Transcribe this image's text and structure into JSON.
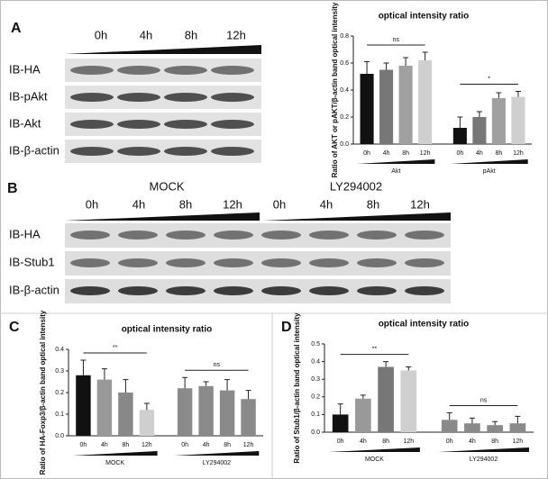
{
  "panel_labels": [
    "A",
    "B",
    "C",
    "D"
  ],
  "blot_a": {
    "times": [
      "0h",
      "4h",
      "8h",
      "12h"
    ],
    "rows": [
      "IB-HA",
      "IB-pAkt",
      "IB-Akt",
      "IB-β-actin"
    ]
  },
  "blot_b": {
    "groups": [
      "MOCK",
      "LY294002"
    ],
    "times": [
      "0h",
      "4h",
      "8h",
      "12h",
      "0h",
      "4h",
      "8h",
      "12h"
    ],
    "rows": [
      "IB-HA",
      "IB-Stub1",
      "IB-β-actin"
    ]
  },
  "chart_data": [
    {
      "type": "bar",
      "title": "optical intensity ratio",
      "y_label": "Ratio of AKT or pAKT/β-actin band optical intensity",
      "categories": [
        "0h",
        "4h",
        "8h",
        "12h",
        "0h",
        "4h",
        "8h",
        "12h"
      ],
      "groups": [
        "Akt",
        "pAkt"
      ],
      "annotations": [
        "ns",
        "*"
      ],
      "values": [
        0.52,
        0.55,
        0.58,
        0.62,
        0.12,
        0.2,
        0.34,
        0.35
      ],
      "errors": [
        0.09,
        0.05,
        0.06,
        0.06,
        0.08,
        0.04,
        0.04,
        0.04
      ],
      "colors": [
        "#111111",
        "#777777",
        "#a0a0a0",
        "#cfcfcf",
        "#111111",
        "#777777",
        "#a0a0a0",
        "#cfcfcf"
      ],
      "ylim": [
        0,
        0.8
      ],
      "yticks": [
        {
          "value": 0,
          "label": "0.0"
        },
        0.2,
        0.4,
        0.6,
        0.8
      ]
    },
    {
      "type": "bar",
      "title": "optical intensity ratio",
      "y_label": "Ratio of HA-Foxp3/β-actin band optical intensity",
      "categories": [
        "0h",
        "4h",
        "8h",
        "12h",
        "0h",
        "4h",
        "8h",
        "12h"
      ],
      "groups": [
        "MOCK",
        "LY294002"
      ],
      "annotations": [
        "**",
        "ns"
      ],
      "values": [
        0.28,
        0.26,
        0.2,
        0.12,
        0.22,
        0.23,
        0.21,
        0.17
      ],
      "errors": [
        0.07,
        0.05,
        0.06,
        0.03,
        0.05,
        0.02,
        0.05,
        0.04
      ],
      "colors": [
        "#111111",
        "#999999",
        "#888888",
        "#cfcfcf",
        "#8a8a8a",
        "#8a8a8a",
        "#8a8a8a",
        "#8a8a8a"
      ],
      "ylim": [
        0,
        0.4
      ],
      "yticks": [
        {
          "value": 0,
          "label": "0.0"
        },
        0.1,
        0.2,
        0.3,
        0.4
      ]
    },
    {
      "type": "bar",
      "title": "optical intensity ratio",
      "y_label": "Ratio of Stub1/β-actin band optical intensity",
      "categories": [
        "0h",
        "4h",
        "8h",
        "12h",
        "0h",
        "4h",
        "8h",
        "12h"
      ],
      "groups": [
        "MOCK",
        "LY294002"
      ],
      "annotations": [
        "**",
        "ns"
      ],
      "values": [
        0.1,
        0.19,
        0.37,
        0.35,
        0.07,
        0.05,
        0.04,
        0.05
      ],
      "errors": [
        0.06,
        0.02,
        0.03,
        0.02,
        0.04,
        0.03,
        0.02,
        0.04
      ],
      "colors": [
        "#111111",
        "#999999",
        "#777777",
        "#cfcfcf",
        "#8a8a8a",
        "#8a8a8a",
        "#8a8a8a",
        "#8a8a8a"
      ],
      "ylim": [
        0,
        0.5
      ],
      "yticks": [
        {
          "value": 0,
          "label": "0.0"
        },
        0.1,
        0.2,
        0.3,
        0.4,
        0.5
      ]
    }
  ]
}
